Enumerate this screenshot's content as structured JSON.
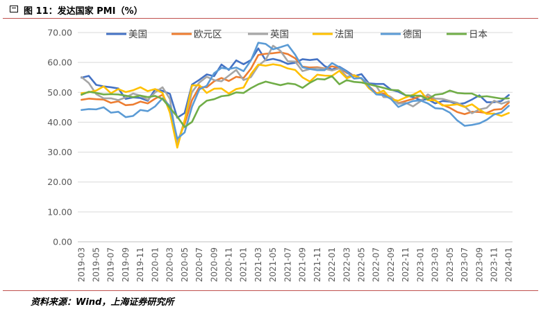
{
  "header": {
    "title": "图 11：发达国家 PMI（%）"
  },
  "footer": {
    "source": "资料来源：Wind，上海证券研究所"
  },
  "chart_data": {
    "type": "line",
    "title": "图 11：发达国家 PMI（%）",
    "xlabel": "",
    "ylabel": "",
    "ylim": [
      0,
      70
    ],
    "yticks": [
      "0.00",
      "10.00",
      "20.00",
      "30.00",
      "40.00",
      "50.00",
      "60.00",
      "70.00"
    ],
    "grid": true,
    "legend": "top",
    "x": [
      "2019-03",
      "2019-04",
      "2019-05",
      "2019-06",
      "2019-07",
      "2019-08",
      "2019-09",
      "2019-10",
      "2019-11",
      "2019-12",
      "2020-01",
      "2020-02",
      "2020-03",
      "2020-04",
      "2020-05",
      "2020-06",
      "2020-07",
      "2020-08",
      "2020-09",
      "2020-10",
      "2020-11",
      "2020-12",
      "2021-01",
      "2021-02",
      "2021-03",
      "2021-04",
      "2021-05",
      "2021-06",
      "2021-07",
      "2021-08",
      "2021-09",
      "2021-10",
      "2021-11",
      "2021-12",
      "2022-01",
      "2022-02",
      "2022-03",
      "2022-04",
      "2022-05",
      "2022-06",
      "2022-07",
      "2022-08",
      "2022-09",
      "2022-10",
      "2022-11",
      "2022-12",
      "2023-01",
      "2023-02",
      "2023-03",
      "2023-04",
      "2023-05",
      "2023-06",
      "2023-07",
      "2023-08",
      "2023-09",
      "2023-10",
      "2023-11",
      "2023-12",
      "2024-01"
    ],
    "x_tick_labels": [
      "2019-03",
      "2019-05",
      "2019-07",
      "2019-09",
      "2019-11",
      "2020-01",
      "2020-03",
      "2020-05",
      "2020-07",
      "2020-09",
      "2020-11",
      "2021-01",
      "2021-03",
      "2021-05",
      "2021-07",
      "2021-09",
      "2021-11",
      "2022-01",
      "2022-03",
      "2022-05",
      "2022-07",
      "2022-09",
      "2022-11",
      "2023-01",
      "2023-03",
      "2023-05",
      "2023-07",
      "2023-09",
      "2023-11",
      "2024-01"
    ],
    "series": [
      {
        "name": "美国",
        "color": "#4472c4",
        "values": [
          54.9,
          55.5,
          52.5,
          52.0,
          51.7,
          51.3,
          47.8,
          48.3,
          48.1,
          47.2,
          51.0,
          50.5,
          49.5,
          41.5,
          43.1,
          52.6,
          54.2,
          56.0,
          55.4,
          59.3,
          57.5,
          60.7,
          59.4,
          60.8,
          64.7,
          60.7,
          61.2,
          60.6,
          59.5,
          59.9,
          61.1,
          60.8,
          61.1,
          58.8,
          57.6,
          58.6,
          57.1,
          55.4,
          56.1,
          53.0,
          52.8,
          52.8,
          50.9,
          50.2,
          49.0,
          48.4,
          47.4,
          47.7,
          46.3,
          47.1,
          46.9,
          46.0,
          46.4,
          47.6,
          49.0,
          46.7,
          46.7,
          47.1,
          49.1
        ]
      },
      {
        "name": "欧元区",
        "color": "#ed7d31",
        "values": [
          47.5,
          47.9,
          47.7,
          47.6,
          46.5,
          47.0,
          45.7,
          45.9,
          46.9,
          46.3,
          47.9,
          49.2,
          44.5,
          33.4,
          39.4,
          47.4,
          51.8,
          51.7,
          53.7,
          54.8,
          53.8,
          55.2,
          54.8,
          57.9,
          62.5,
          62.9,
          63.1,
          63.4,
          62.8,
          61.4,
          58.6,
          58.3,
          58.4,
          58.0,
          58.7,
          58.2,
          56.5,
          55.5,
          54.6,
          52.1,
          49.8,
          49.6,
          48.4,
          46.4,
          47.1,
          47.8,
          48.8,
          48.5,
          47.3,
          45.8,
          44.8,
          43.4,
          42.7,
          43.5,
          43.4,
          43.1,
          44.2,
          44.4,
          46.6
        ]
      },
      {
        "name": "英国",
        "color": "#a5a5a5",
        "values": [
          55.1,
          53.1,
          49.4,
          48.0,
          48.0,
          47.4,
          48.3,
          49.6,
          48.9,
          47.5,
          50.0,
          51.7,
          47.8,
          32.6,
          40.7,
          50.1,
          53.3,
          55.2,
          54.1,
          53.7,
          55.6,
          57.5,
          54.1,
          55.1,
          58.9,
          60.9,
          65.6,
          63.9,
          60.4,
          60.3,
          57.1,
          57.8,
          58.1,
          57.9,
          57.3,
          58.0,
          55.2,
          55.8,
          54.6,
          52.8,
          52.1,
          48.4,
          48.4,
          46.2,
          46.5,
          45.3,
          47.0,
          49.3,
          47.9,
          47.8,
          47.1,
          46.5,
          45.3,
          43.0,
          44.3,
          44.8,
          47.2,
          46.2,
          47.0
        ]
      },
      {
        "name": "法国",
        "color": "#ffc000",
        "values": [
          49.7,
          50.0,
          50.6,
          52.0,
          49.7,
          51.1,
          50.1,
          50.7,
          51.7,
          50.4,
          51.1,
          49.8,
          43.2,
          31.5,
          40.6,
          52.3,
          52.4,
          49.8,
          51.2,
          51.3,
          49.6,
          51.1,
          51.6,
          56.1,
          59.3,
          58.9,
          59.4,
          59.0,
          58.0,
          57.5,
          55.0,
          53.6,
          55.9,
          55.6,
          55.5,
          57.2,
          54.7,
          55.7,
          54.6,
          51.4,
          49.5,
          50.6,
          47.7,
          47.2,
          48.3,
          49.2,
          50.5,
          47.4,
          47.3,
          45.6,
          45.7,
          46.0,
          45.1,
          46.0,
          44.2,
          42.8,
          42.9,
          42.1,
          43.1
        ]
      },
      {
        "name": "德国",
        "color": "#5b9bd5",
        "values": [
          44.1,
          44.4,
          44.3,
          45.0,
          43.2,
          43.5,
          41.7,
          42.1,
          44.1,
          43.7,
          45.3,
          48.0,
          45.4,
          34.5,
          36.6,
          45.2,
          51.0,
          52.2,
          56.4,
          58.2,
          57.8,
          58.3,
          57.1,
          60.7,
          66.6,
          66.2,
          64.4,
          65.1,
          65.9,
          62.6,
          58.4,
          57.8,
          57.4,
          57.4,
          59.8,
          58.4,
          56.9,
          54.6,
          54.8,
          52.0,
          49.3,
          49.1,
          47.8,
          45.1,
          46.2,
          47.1,
          47.3,
          46.3,
          44.7,
          44.5,
          43.2,
          40.6,
          38.8,
          39.1,
          39.6,
          40.8,
          42.6,
          43.3,
          45.5
        ]
      },
      {
        "name": "日本",
        "color": "#70ad47",
        "values": [
          49.2,
          50.2,
          49.8,
          49.3,
          49.4,
          49.3,
          48.9,
          48.4,
          48.9,
          48.4,
          48.8,
          47.8,
          44.8,
          41.9,
          38.4,
          40.1,
          45.2,
          47.2,
          47.7,
          48.7,
          49.0,
          50.0,
          49.8,
          51.4,
          52.7,
          53.6,
          53.0,
          52.4,
          53.0,
          52.7,
          51.5,
          53.2,
          54.5,
          54.3,
          55.4,
          52.7,
          54.1,
          53.5,
          53.3,
          52.7,
          52.1,
          51.5,
          50.8,
          50.7,
          49.0,
          48.9,
          48.9,
          47.7,
          49.2,
          49.5,
          50.6,
          49.8,
          49.6,
          49.6,
          48.5,
          48.7,
          48.3,
          47.9,
          48.0
        ]
      }
    ]
  }
}
